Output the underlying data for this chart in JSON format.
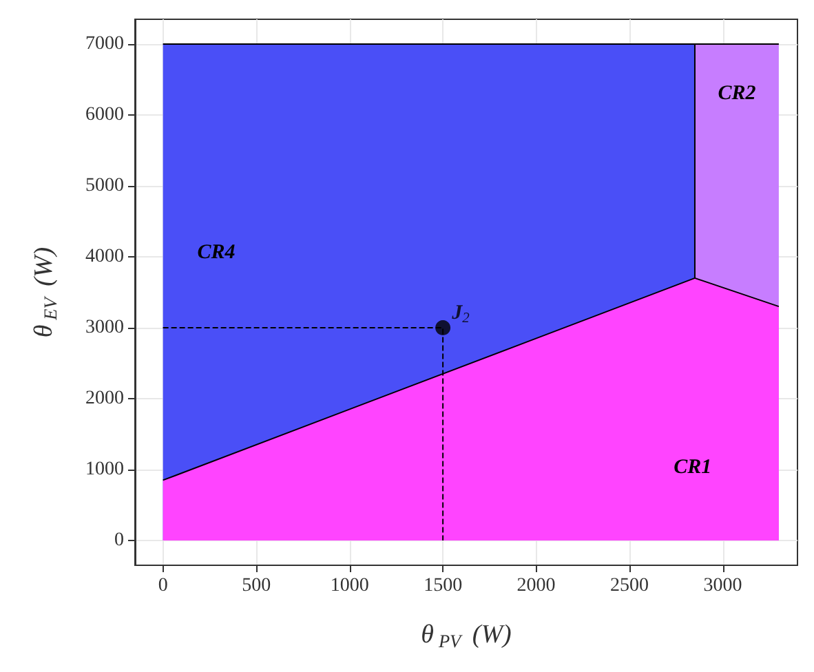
{
  "chart_data": {
    "type": "area",
    "xlabel": "θ$_{PV}$ (W)",
    "ylabel": "θ$_{EV}$ (W)",
    "series": [
      {
        "name": "CR4",
        "color": "#4a4ff7",
        "x": [
          0,
          2850,
          2850
        ],
        "values": [
          7000,
          7000,
          3700
        ]
      },
      {
        "name": "CR2",
        "color": "#c77dff",
        "x": [
          2850,
          3300
        ],
        "values": [
          7000,
          7000
        ]
      },
      {
        "name": "CR1",
        "color": "#ff44ff",
        "x": [
          0,
          2850,
          3300
        ],
        "values": [
          850,
          3700,
          3300
        ]
      },
      {
        "type": "line",
        "color": "#000000",
        "line_style": "dashed",
        "x": [
          0,
          1500,
          1500
        ],
        "values": [
          3000,
          3000,
          0
        ]
      },
      {
        "type": "scatter",
        "name": "J$_{2}$",
        "color": "#000000",
        "marker": "circle",
        "x": [
          1500
        ],
        "values": [
          3000
        ]
      }
    ],
    "xlim": [
      -150,
      3400
    ],
    "xticks": [
      0,
      500,
      1000,
      1500,
      2000,
      2500,
      3000
    ],
    "ylim": [
      -350,
      7350
    ],
    "yticks": [
      0,
      1000,
      2000,
      3000,
      4000,
      5000,
      6000,
      7000
    ],
    "grid": true
  }
}
